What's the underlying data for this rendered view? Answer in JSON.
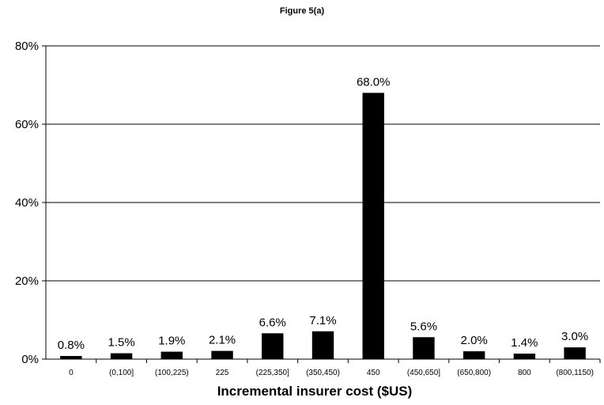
{
  "chart_data": {
    "type": "bar",
    "title": "Figure 5(a)",
    "xlabel": "Incremental insurer cost ($US)",
    "ylabel": "",
    "ylim": [
      0,
      80
    ],
    "yticks": [
      "0%",
      "20%",
      "40%",
      "60%",
      "80%"
    ],
    "categories": [
      "0",
      "(0,100]",
      "(100,225)",
      "225",
      "(225,350]",
      "(350,450)",
      "450",
      "(450,650]",
      "(650,800)",
      "800",
      "(800,1150)"
    ],
    "values": [
      0.8,
      1.5,
      1.9,
      2.1,
      6.6,
      7.1,
      68.0,
      5.6,
      2.0,
      1.4,
      3.0
    ],
    "data_labels": [
      "0.8%",
      "1.5%",
      "1.9%",
      "2.1%",
      "6.6%",
      "7.1%",
      "68.0%",
      "5.6%",
      "2.0%",
      "1.4%",
      "3.0%"
    ],
    "grid": true,
    "bar_color": "#000000"
  }
}
